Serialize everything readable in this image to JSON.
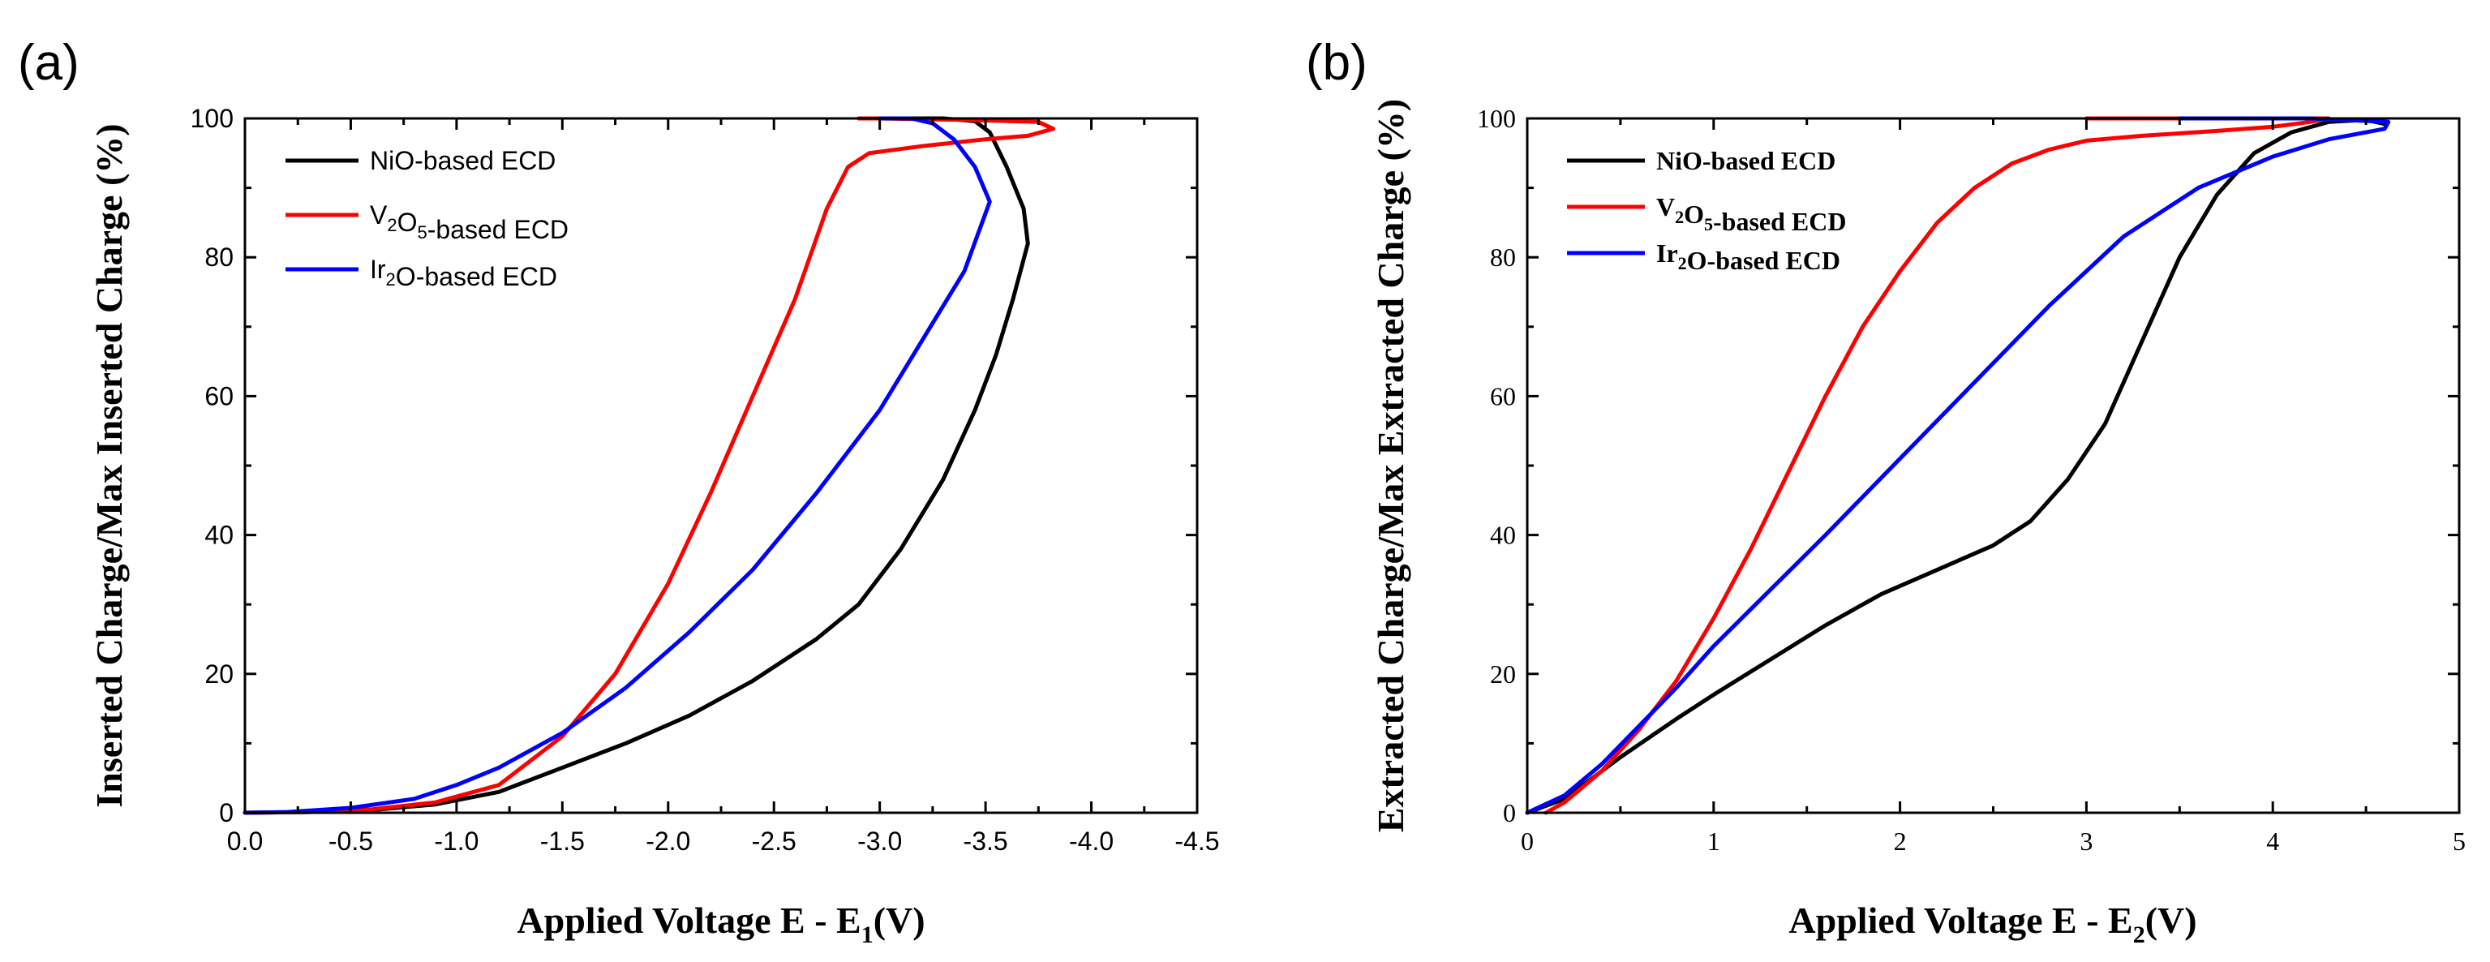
{
  "chart_data": [
    {
      "panel_label": "(a)",
      "type": "line",
      "title": "",
      "xlabel": {
        "main": "Applied Voltage E - E",
        "sub": "1",
        "tail": "(V)"
      },
      "ylabel": "Inserted Charge/Max Inserted Charge (%)",
      "xlim": [
        0.0,
        -4.5
      ],
      "ylim": [
        0,
        100
      ],
      "xticks": [
        0.0,
        -0.5,
        -1.0,
        -1.5,
        -2.0,
        -2.5,
        -3.0,
        -3.5,
        -4.0,
        -4.5
      ],
      "xtick_labels": [
        "0.0",
        "-0.5",
        "-1.0",
        "-1.5",
        "-2.0",
        "-2.5",
        "-3.0",
        "-3.5",
        "-4.0",
        "-4.5"
      ],
      "yticks": [
        0,
        20,
        40,
        60,
        80,
        100
      ],
      "ytick_labels": [
        "0",
        "20",
        "40",
        "60",
        "80",
        "100"
      ],
      "legend_position": "upper-left",
      "series": [
        {
          "name": "NiO-based ECD",
          "legend": {
            "text": [
              [
                "NiO-based ECD",
                ""
              ]
            ]
          },
          "color": "#000000",
          "points": [
            [
              0,
              0
            ],
            [
              -0.3,
              0.1
            ],
            [
              -0.6,
              0.4
            ],
            [
              -0.9,
              1.2
            ],
            [
              -1.2,
              3
            ],
            [
              -1.5,
              6.5
            ],
            [
              -1.8,
              10
            ],
            [
              -2.1,
              14
            ],
            [
              -2.4,
              19
            ],
            [
              -2.7,
              25
            ],
            [
              -2.9,
              30
            ],
            [
              -3.1,
              38
            ],
            [
              -3.3,
              48
            ],
            [
              -3.45,
              58
            ],
            [
              -3.55,
              66
            ],
            [
              -3.63,
              74
            ],
            [
              -3.7,
              82
            ],
            [
              -3.68,
              87
            ],
            [
              -3.6,
              93
            ],
            [
              -3.52,
              98
            ],
            [
              -3.45,
              99.6
            ],
            [
              -3.3,
              100
            ],
            [
              -3.0,
              100
            ]
          ]
        },
        {
          "name": "V2O5-based ECD",
          "legend": {
            "text": [
              [
                "V",
                ""
              ],
              [
                "2",
                "sub"
              ],
              [
                "O",
                ""
              ],
              [
                "5",
                "sub"
              ],
              [
                "-based ECD",
                ""
              ]
            ]
          },
          "color": "#ff0000",
          "points": [
            [
              0,
              0
            ],
            [
              -0.3,
              0.1
            ],
            [
              -0.6,
              0.5
            ],
            [
              -0.9,
              1.5
            ],
            [
              -1.2,
              4
            ],
            [
              -1.5,
              11
            ],
            [
              -1.75,
              20
            ],
            [
              -2.0,
              33
            ],
            [
              -2.2,
              46
            ],
            [
              -2.4,
              60
            ],
            [
              -2.6,
              74
            ],
            [
              -2.75,
              87
            ],
            [
              -2.85,
              93
            ],
            [
              -2.95,
              95
            ],
            [
              -3.2,
              96
            ],
            [
              -3.5,
              97
            ],
            [
              -3.7,
              97.5
            ],
            [
              -3.82,
              98.5
            ],
            [
              -3.75,
              99.5
            ],
            [
              -3.4,
              99.8
            ],
            [
              -3.0,
              100
            ],
            [
              -2.9,
              100
            ]
          ]
        },
        {
          "name": "Ir2O-based ECD",
          "legend": {
            "text": [
              [
                "Ir",
                ""
              ],
              [
                "2",
                "sub"
              ],
              [
                "O-based ECD",
                ""
              ]
            ]
          },
          "color": "#0000ff",
          "points": [
            [
              0,
              0
            ],
            [
              -0.2,
              0.1
            ],
            [
              -0.5,
              0.7
            ],
            [
              -0.8,
              2
            ],
            [
              -1.0,
              4
            ],
            [
              -1.2,
              6.5
            ],
            [
              -1.5,
              11.5
            ],
            [
              -1.8,
              18
            ],
            [
              -2.1,
              26
            ],
            [
              -2.4,
              35
            ],
            [
              -2.7,
              46
            ],
            [
              -3.0,
              58
            ],
            [
              -3.2,
              68
            ],
            [
              -3.4,
              78
            ],
            [
              -3.52,
              88
            ],
            [
              -3.45,
              93
            ],
            [
              -3.35,
              97
            ],
            [
              -3.25,
              99.3
            ],
            [
              -3.15,
              100
            ],
            [
              -3.0,
              100
            ]
          ]
        }
      ]
    },
    {
      "panel_label": "(b)",
      "type": "line",
      "title": "",
      "xlabel": {
        "main": "Applied Voltage E - E",
        "sub": "2",
        "tail": "(V)"
      },
      "ylabel": "Extracted Charge/Max Extracted Charge (%)",
      "xlim": [
        0,
        5
      ],
      "ylim": [
        0,
        100
      ],
      "xticks": [
        0,
        1,
        2,
        3,
        4,
        5
      ],
      "xtick_labels": [
        "0",
        "1",
        "2",
        "3",
        "4",
        "5"
      ],
      "yticks": [
        0,
        20,
        40,
        60,
        80,
        100
      ],
      "ytick_labels": [
        "0",
        "20",
        "40",
        "60",
        "80",
        "100"
      ],
      "legend_position": "upper-left",
      "series": [
        {
          "name": "NiO-based ECD",
          "legend": {
            "text": [
              [
                "NiO-based ECD",
                ""
              ]
            ]
          },
          "color": "#000000",
          "points": [
            [
              0,
              0
            ],
            [
              0.2,
              2
            ],
            [
              0.5,
              8
            ],
            [
              0.8,
              13.5
            ],
            [
              1.0,
              17
            ],
            [
              1.3,
              22
            ],
            [
              1.6,
              27
            ],
            [
              1.9,
              31.5
            ],
            [
              2.2,
              35
            ],
            [
              2.5,
              38.5
            ],
            [
              2.7,
              42
            ],
            [
              2.9,
              48
            ],
            [
              3.1,
              56
            ],
            [
              3.3,
              68
            ],
            [
              3.5,
              80
            ],
            [
              3.7,
              89
            ],
            [
              3.9,
              95
            ],
            [
              4.1,
              98
            ],
            [
              4.3,
              99.5
            ],
            [
              4.5,
              99.8
            ],
            [
              4.6,
              99.2
            ]
          ]
        },
        {
          "name": "V2O5-based ECD",
          "legend": {
            "text": [
              [
                "V",
                ""
              ],
              [
                "2",
                "sub"
              ],
              [
                "O",
                ""
              ],
              [
                "5",
                "sub"
              ],
              [
                "-based ECD",
                ""
              ]
            ]
          },
          "color": "#ff0000",
          "points": [
            [
              0.1,
              0
            ],
            [
              0.2,
              1.5
            ],
            [
              0.4,
              6
            ],
            [
              0.6,
              12
            ],
            [
              0.8,
              19
            ],
            [
              1.0,
              28
            ],
            [
              1.2,
              38
            ],
            [
              1.4,
              49
            ],
            [
              1.6,
              60
            ],
            [
              1.8,
              70
            ],
            [
              2.0,
              78
            ],
            [
              2.2,
              85
            ],
            [
              2.4,
              90
            ],
            [
              2.6,
              93.5
            ],
            [
              2.8,
              95.5
            ],
            [
              3.0,
              96.8
            ],
            [
              3.3,
              97.5
            ],
            [
              3.7,
              98.2
            ],
            [
              4.0,
              98.8
            ],
            [
              4.2,
              99.5
            ],
            [
              4.3,
              100
            ],
            [
              3.0,
              100
            ]
          ]
        },
        {
          "name": "Ir2O-based ECD",
          "legend": {
            "text": [
              [
                "Ir",
                ""
              ],
              [
                "2",
                "sub"
              ],
              [
                "O-based ECD",
                ""
              ]
            ]
          },
          "color": "#0000ff",
          "points": [
            [
              0,
              0
            ],
            [
              0.2,
              2.5
            ],
            [
              0.4,
              7
            ],
            [
              0.6,
              12.5
            ],
            [
              0.8,
              18
            ],
            [
              1.0,
              24
            ],
            [
              1.3,
              32
            ],
            [
              1.6,
              40
            ],
            [
              2.0,
              51
            ],
            [
              2.4,
              62
            ],
            [
              2.8,
              73
            ],
            [
              3.2,
              83
            ],
            [
              3.6,
              90
            ],
            [
              4.0,
              94.5
            ],
            [
              4.3,
              97
            ],
            [
              4.6,
              98.5
            ],
            [
              4.62,
              99.5
            ],
            [
              4.2,
              100
            ],
            [
              3.5,
              100
            ]
          ]
        }
      ]
    }
  ]
}
